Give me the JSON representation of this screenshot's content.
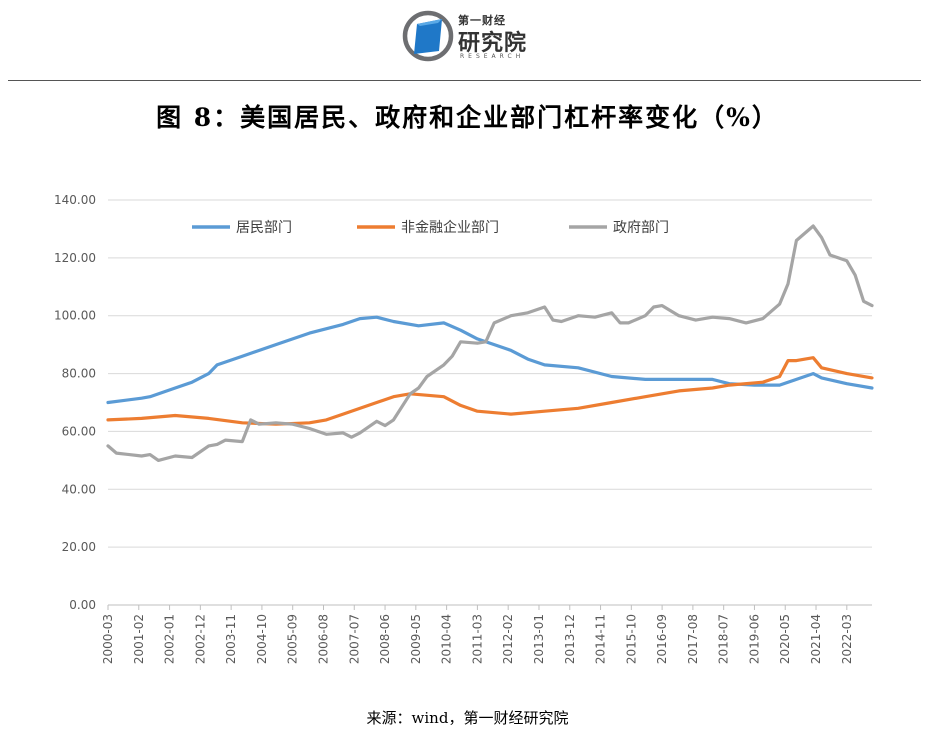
{
  "header": {
    "logo_top": "第一财经",
    "logo_main": "研究院",
    "logo_sub": "RESEARCH"
  },
  "title": "图 8：美国居民、政府和企业部门杠杆率变化（%）",
  "source": "来源：wind，第一财经研究院",
  "colors": {
    "household": "#5b9bd5",
    "corporate": "#ed7d31",
    "government": "#a5a5a5",
    "logo_blue": "#1f78c8"
  },
  "chart_data": {
    "type": "line",
    "title": "",
    "xlabel": "",
    "ylabel": "",
    "ylim": [
      0,
      140
    ],
    "yticks": [
      "0.00",
      "20.00",
      "40.00",
      "60.00",
      "80.00",
      "100.00",
      "120.00",
      "140.00"
    ],
    "grid": true,
    "legend_position": "top",
    "xticks": [
      "2000-03",
      "2001-02",
      "2002-01",
      "2002-12",
      "2003-11",
      "2004-10",
      "2005-09",
      "2006-08",
      "2007-07",
      "2008-06",
      "2009-05",
      "2010-04",
      "2011-03",
      "2012-02",
      "2013-01",
      "2013-12",
      "2014-11",
      "2015-10",
      "2016-09",
      "2017-08",
      "2018-07",
      "2019-06",
      "2020-05",
      "2021-04",
      "2022-03"
    ],
    "x_start": "2000-03",
    "x_end": "2022-12",
    "series": [
      {
        "name": "居民部门",
        "color": "#5b9bd5",
        "points": [
          [
            "2000-03",
            70
          ],
          [
            "2001-03",
            71.5
          ],
          [
            "2001-06",
            72
          ],
          [
            "2002-03",
            75
          ],
          [
            "2002-09",
            77
          ],
          [
            "2003-03",
            80
          ],
          [
            "2003-06",
            83
          ],
          [
            "2004-03",
            86
          ],
          [
            "2005-03",
            90
          ],
          [
            "2006-03",
            94
          ],
          [
            "2007-03",
            97
          ],
          [
            "2007-09",
            99
          ],
          [
            "2008-03",
            99.5
          ],
          [
            "2008-09",
            98
          ],
          [
            "2009-06",
            96.5
          ],
          [
            "2010-03",
            97.5
          ],
          [
            "2010-09",
            95
          ],
          [
            "2011-03",
            92
          ],
          [
            "2012-03",
            88
          ],
          [
            "2012-09",
            85
          ],
          [
            "2013-03",
            83
          ],
          [
            "2014-03",
            82
          ],
          [
            "2015-03",
            79
          ],
          [
            "2016-03",
            78
          ],
          [
            "2017-03",
            78
          ],
          [
            "2018-03",
            78
          ],
          [
            "2018-09",
            76.5
          ],
          [
            "2019-06",
            76
          ],
          [
            "2020-03",
            76
          ],
          [
            "2020-09",
            78
          ],
          [
            "2021-03",
            80
          ],
          [
            "2021-06",
            78.5
          ],
          [
            "2022-03",
            76.5
          ],
          [
            "2022-12",
            75
          ]
        ]
      },
      {
        "name": "非金融企业部门",
        "color": "#ed7d31",
        "points": [
          [
            "2000-03",
            64
          ],
          [
            "2001-03",
            64.5
          ],
          [
            "2002-03",
            65.5
          ],
          [
            "2003-03",
            64.5
          ],
          [
            "2004-03",
            63
          ],
          [
            "2005-03",
            62.5
          ],
          [
            "2006-03",
            63
          ],
          [
            "2006-09",
            64
          ],
          [
            "2007-03",
            66
          ],
          [
            "2008-03",
            70
          ],
          [
            "2008-09",
            72
          ],
          [
            "2009-03",
            73
          ],
          [
            "2010-03",
            72
          ],
          [
            "2010-09",
            69
          ],
          [
            "2011-03",
            67
          ],
          [
            "2012-03",
            66
          ],
          [
            "2013-03",
            67
          ],
          [
            "2014-03",
            68
          ],
          [
            "2015-03",
            70
          ],
          [
            "2016-03",
            72
          ],
          [
            "2017-03",
            74
          ],
          [
            "2018-03",
            75
          ],
          [
            "2018-09",
            76
          ],
          [
            "2019-09",
            77
          ],
          [
            "2020-03",
            79
          ],
          [
            "2020-06",
            84.5
          ],
          [
            "2020-09",
            84.5
          ],
          [
            "2021-03",
            85.5
          ],
          [
            "2021-06",
            82
          ],
          [
            "2022-03",
            80
          ],
          [
            "2022-12",
            78.5
          ]
        ]
      },
      {
        "name": "政府部门",
        "color": "#a5a5a5",
        "points": [
          [
            "2000-03",
            55
          ],
          [
            "2000-06",
            52.5
          ],
          [
            "2001-03",
            51.5
          ],
          [
            "2001-06",
            52
          ],
          [
            "2001-09",
            50
          ],
          [
            "2002-03",
            51.5
          ],
          [
            "2002-09",
            51
          ],
          [
            "2003-03",
            55
          ],
          [
            "2003-06",
            55.5
          ],
          [
            "2003-09",
            57
          ],
          [
            "2004-03",
            56.5
          ],
          [
            "2004-06",
            64
          ],
          [
            "2004-09",
            62.5
          ],
          [
            "2005-03",
            63
          ],
          [
            "2005-09",
            62.5
          ],
          [
            "2006-03",
            61
          ],
          [
            "2006-09",
            59
          ],
          [
            "2007-03",
            59.5
          ],
          [
            "2007-06",
            58
          ],
          [
            "2007-09",
            59.5
          ],
          [
            "2008-03",
            63.5
          ],
          [
            "2008-06",
            62
          ],
          [
            "2008-09",
            64
          ],
          [
            "2009-03",
            73
          ],
          [
            "2009-06",
            75
          ],
          [
            "2009-09",
            79
          ],
          [
            "2010-03",
            83
          ],
          [
            "2010-06",
            86
          ],
          [
            "2010-09",
            91
          ],
          [
            "2011-03",
            90.5
          ],
          [
            "2011-06",
            91
          ],
          [
            "2011-09",
            97.5
          ],
          [
            "2012-03",
            100
          ],
          [
            "2012-09",
            101
          ],
          [
            "2013-03",
            103
          ],
          [
            "2013-06",
            98.5
          ],
          [
            "2013-09",
            98
          ],
          [
            "2014-03",
            100
          ],
          [
            "2014-09",
            99.5
          ],
          [
            "2015-03",
            101
          ],
          [
            "2015-06",
            97.5
          ],
          [
            "2015-09",
            97.5
          ],
          [
            "2016-03",
            100
          ],
          [
            "2016-06",
            103
          ],
          [
            "2016-09",
            103.5
          ],
          [
            "2017-03",
            100
          ],
          [
            "2017-09",
            98.5
          ],
          [
            "2018-03",
            99.5
          ],
          [
            "2018-09",
            99
          ],
          [
            "2019-03",
            97.5
          ],
          [
            "2019-09",
            99
          ],
          [
            "2020-03",
            104
          ],
          [
            "2020-06",
            111
          ],
          [
            "2020-09",
            126
          ],
          [
            "2021-03",
            131
          ],
          [
            "2021-06",
            127
          ],
          [
            "2021-09",
            121
          ],
          [
            "2022-03",
            119
          ],
          [
            "2022-06",
            114
          ],
          [
            "2022-09",
            105
          ],
          [
            "2022-12",
            103.5
          ]
        ]
      }
    ]
  }
}
